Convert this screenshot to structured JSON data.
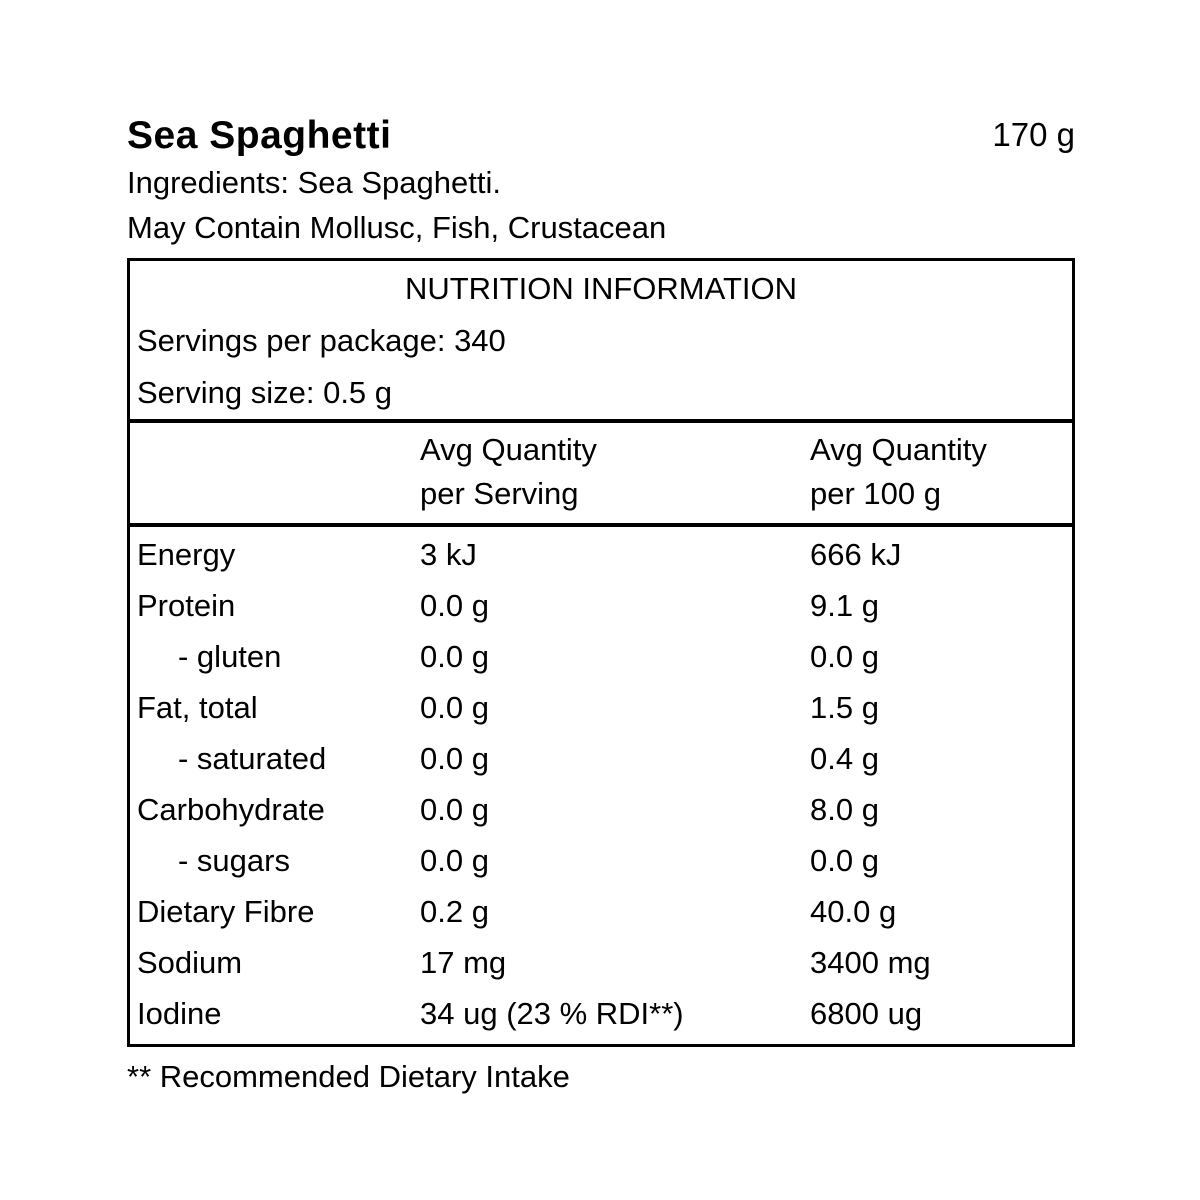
{
  "colors": {
    "background": "#ffffff",
    "text": "#000000",
    "table_border": "#000000"
  },
  "header": {
    "product_name": "Sea Spaghetti",
    "net_weight": "170 g",
    "ingredients_line": "Ingredients: Sea Spaghetti.",
    "may_contain_line": "May Contain Mollusc, Fish, Crustacean"
  },
  "nutrition_table": {
    "title": "NUTRITION INFORMATION",
    "servings_line": "Servings per package: 340",
    "serving_size_line": "Serving size: 0.5 g",
    "columns": {
      "per_serving": {
        "line1": "Avg Quantity",
        "line2": "per Serving"
      },
      "per_100g": {
        "line1": "Avg Quantity",
        "line2": "per 100 g"
      }
    },
    "rows": [
      {
        "nutrient": "Energy",
        "per_serving": "3 kJ",
        "per_100g": "666 kJ",
        "indent": false
      },
      {
        "nutrient": "Protein",
        "per_serving": "0.0 g",
        "per_100g": "9.1 g",
        "indent": false
      },
      {
        "nutrient": "- gluten",
        "per_serving": "0.0 g",
        "per_100g": "0.0 g",
        "indent": true
      },
      {
        "nutrient": "Fat, total",
        "per_serving": "0.0 g",
        "per_100g": "1.5 g",
        "indent": false
      },
      {
        "nutrient": "- saturated",
        "per_serving": "0.0 g",
        "per_100g": "0.4 g",
        "indent": true
      },
      {
        "nutrient": "Carbohydrate",
        "per_serving": "0.0 g",
        "per_100g": "8.0 g",
        "indent": false
      },
      {
        "nutrient": "- sugars",
        "per_serving": "0.0 g",
        "per_100g": "0.0 g",
        "indent": true
      },
      {
        "nutrient": "Dietary Fibre",
        "per_serving": "0.2 g",
        "per_100g": "40.0 g",
        "indent": false
      },
      {
        "nutrient": "Sodium",
        "per_serving": "17 mg",
        "per_100g": "3400 mg",
        "indent": false
      },
      {
        "nutrient": "Iodine",
        "per_serving": "34 ug (23 % RDI**)",
        "per_100g": "6800 ug",
        "indent": false
      }
    ]
  },
  "footnote": {
    "text": "** Recommended Dietary Intake"
  }
}
